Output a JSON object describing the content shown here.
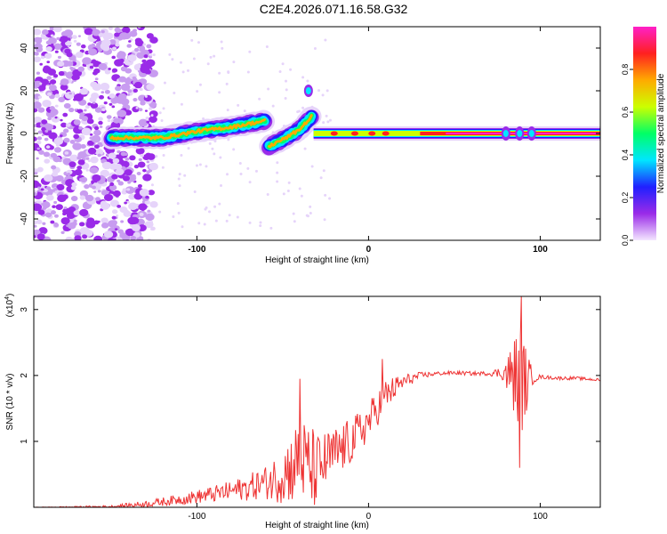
{
  "title": "C2E4.2026.071.16.58.G32",
  "chart_data": [
    {
      "type": "heatmap",
      "name": "spectrogram",
      "xlabel": "Height of straight line (km)",
      "ylabel": "Frequency (Hz)",
      "xlim": [
        -195,
        135
      ],
      "ylim": [
        -50,
        50
      ],
      "xticks": [
        -100,
        0,
        100
      ],
      "xtick_labels": [
        "-100",
        "0",
        "100"
      ],
      "yticks": [
        -40,
        -20,
        0,
        20,
        40
      ],
      "ytick_labels": [
        "-40",
        "-20",
        "0",
        "20",
        "40"
      ],
      "colorbar": {
        "label": "Normalized spectral amplitude",
        "range": [
          0,
          1
        ],
        "ticks": [
          0,
          0.2,
          0.4,
          0.6,
          0.8
        ],
        "tick_labels": [
          "0.0",
          "0.2",
          "0.4",
          "0.6",
          "0.8"
        ],
        "colors": [
          "#f4e6ff",
          "#9a2be8",
          "#2020ff",
          "#00e6ff",
          "#00ff66",
          "#ccff00",
          "#ffaa00",
          "#ff2020",
          "#ff20c8"
        ]
      },
      "features": [
        {
          "label": "noise",
          "x_range": [
            -195,
            -125
          ],
          "freq_range": [
            -50,
            50
          ]
        },
        {
          "label": "chirp",
          "x": [
            -150,
            -120,
            -100,
            -80,
            -60
          ],
          "freq": [
            -2,
            -2,
            1,
            3,
            6
          ]
        },
        {
          "label": "chirp-branch",
          "x": [
            -58,
            -48,
            -40,
            -33
          ],
          "freq": [
            -6,
            -2,
            2,
            8
          ]
        },
        {
          "label": "carrier",
          "x_range": [
            -32,
            135
          ],
          "freq": 0
        }
      ]
    },
    {
      "type": "line",
      "name": "snr",
      "xlabel": "Height of straight line (km)",
      "ylabel": "SNR (10 * v/v)",
      "y_scale_label": "(x10",
      "y_scale_exp": "4",
      "xlim": [
        -195,
        135
      ],
      "ylim": [
        0,
        3.2
      ],
      "xticks": [
        -100,
        0,
        100
      ],
      "xtick_labels": [
        "-100",
        "0",
        "100"
      ],
      "yticks": [
        1,
        2,
        3
      ],
      "ytick_labels": [
        "1",
        "2",
        "3"
      ],
      "color": "#ee3333",
      "anchors": {
        "x": [
          -195,
          -150,
          -130,
          -110,
          -90,
          -70,
          -55,
          -45,
          -40,
          -35,
          -30,
          -25,
          -20,
          -15,
          -10,
          -5,
          0,
          5,
          10,
          20,
          30,
          40,
          50,
          60,
          70,
          75,
          80,
          85,
          90,
          95,
          100,
          110,
          120,
          135
        ],
        "y": [
          0.0,
          0.01,
          0.05,
          0.12,
          0.2,
          0.3,
          0.42,
          0.6,
          0.75,
          0.6,
          0.55,
          0.7,
          0.8,
          0.9,
          1.0,
          1.15,
          1.3,
          1.5,
          1.7,
          1.9,
          2.0,
          2.03,
          2.04,
          2.03,
          2.03,
          2.04,
          2.02,
          2.0,
          1.9,
          1.95,
          1.98,
          1.96,
          1.96,
          1.93
        ]
      },
      "noise_amp": {
        "x": [
          -195,
          -150,
          -110,
          -80,
          -60,
          -45,
          -35,
          -25,
          -10,
          0,
          10,
          20,
          30,
          40,
          70,
          78,
          85,
          88,
          92,
          96,
          100,
          135
        ],
        "a": [
          0.0,
          0.02,
          0.08,
          0.15,
          0.25,
          0.55,
          0.7,
          0.45,
          0.35,
          0.3,
          0.25,
          0.12,
          0.05,
          0.03,
          0.03,
          0.1,
          0.6,
          0.9,
          0.5,
          0.08,
          0.03,
          0.02
        ]
      },
      "spikes": [
        {
          "x": -40,
          "y": 1.95
        },
        {
          "x": 8,
          "y": 2.25
        },
        {
          "x": 86,
          "y": 2.55
        },
        {
          "x": 88,
          "y": 0.6
        },
        {
          "x": 89,
          "y": 3.2
        }
      ]
    }
  ]
}
